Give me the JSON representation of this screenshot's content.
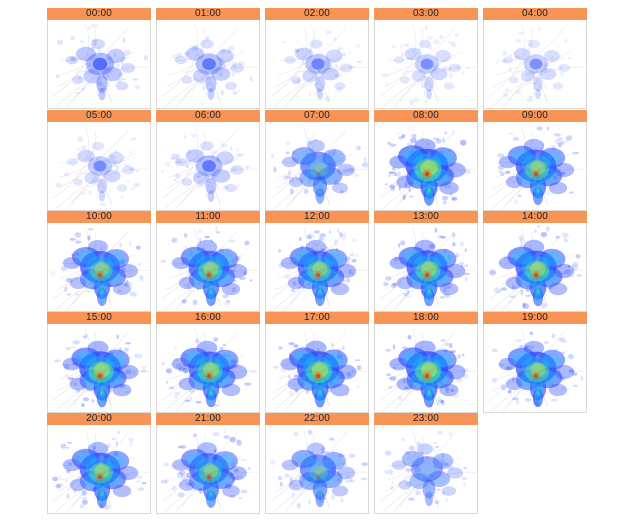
{
  "colors": {
    "header_bg": "#f79456",
    "background": "#ffffff",
    "colormap": [
      "#ffffff",
      "#2b4cff",
      "#00e0ff",
      "#66ff66",
      "#ffff00",
      "#ff6600",
      "#d40000"
    ]
  },
  "panels": [
    {
      "label": "00:00",
      "intensity": 0.3
    },
    {
      "label": "01:00",
      "intensity": 0.22
    },
    {
      "label": "02:00",
      "intensity": 0.16
    },
    {
      "label": "03:00",
      "intensity": 0.1
    },
    {
      "label": "04:00",
      "intensity": 0.09
    },
    {
      "label": "05:00",
      "intensity": 0.12
    },
    {
      "label": "06:00",
      "intensity": 0.22
    },
    {
      "label": "07:00",
      "intensity": 0.62
    },
    {
      "label": "08:00",
      "intensity": 0.95
    },
    {
      "label": "09:00",
      "intensity": 0.85
    },
    {
      "label": "10:00",
      "intensity": 0.82
    },
    {
      "label": "11:00",
      "intensity": 0.85
    },
    {
      "label": "12:00",
      "intensity": 0.85
    },
    {
      "label": "13:00",
      "intensity": 0.88
    },
    {
      "label": "14:00",
      "intensity": 0.88
    },
    {
      "label": "15:00",
      "intensity": 0.9
    },
    {
      "label": "16:00",
      "intensity": 0.88
    },
    {
      "label": "17:00",
      "intensity": 0.92
    },
    {
      "label": "18:00",
      "intensity": 0.92
    },
    {
      "label": "19:00",
      "intensity": 0.85
    },
    {
      "label": "20:00",
      "intensity": 0.85
    },
    {
      "label": "21:00",
      "intensity": 0.8
    },
    {
      "label": "22:00",
      "intensity": 0.65
    },
    {
      "label": "23:00",
      "intensity": 0.45
    }
  ]
}
